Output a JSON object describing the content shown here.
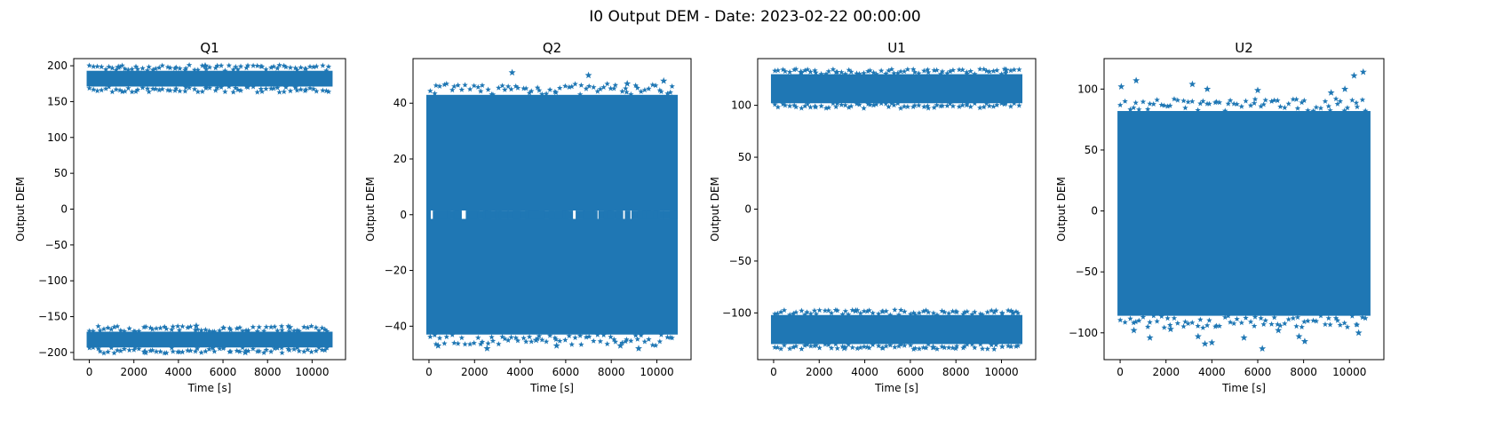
{
  "figure": {
    "title": "I0 Output DEM - Date: 2023-02-22 00:00:00"
  },
  "chart_data": [
    {
      "type": "scatter",
      "title": "Q1",
      "xlabel": "Time [s]",
      "ylabel": "Output DEM",
      "xlim": [
        -700,
        11500
      ],
      "ylim": [
        -210,
        210
      ],
      "xticks": [
        0,
        2000,
        4000,
        6000,
        8000,
        10000
      ],
      "yticks": [
        -200,
        -150,
        -100,
        -50,
        0,
        50,
        100,
        150,
        200
      ],
      "marker": "star",
      "color": "#1f77b4",
      "x_range": [
        0,
        10800
      ],
      "bands": [
        {
          "center": 182,
          "half_width": 11,
          "outlier_spread": 8
        },
        {
          "center": -182,
          "half_width": 11,
          "outlier_spread": 8
        }
      ],
      "outliers": [
        [
          1300,
          198
        ],
        [
          4800,
          -163
        ],
        [
          9000,
          -165
        ],
        [
          5200,
          200
        ],
        [
          7000,
          -200
        ],
        [
          2500,
          -199
        ]
      ]
    },
    {
      "type": "scatter",
      "title": "Q2",
      "xlabel": "Time [s]",
      "ylabel": "Output DEM",
      "xlim": [
        -700,
        11500
      ],
      "ylim": [
        -52,
        56
      ],
      "xticks": [
        0,
        2000,
        4000,
        6000,
        8000,
        10000
      ],
      "yticks": [
        -40,
        -20,
        0,
        20,
        40
      ],
      "marker": "star",
      "color": "#1f77b4",
      "x_range": [
        0,
        10800
      ],
      "bands": [
        {
          "center": 0,
          "half_width": 43,
          "outlier_spread": 4
        }
      ],
      "gap": {
        "center": 0,
        "half_width": 1.5
      },
      "outliers": [
        [
          3650,
          51
        ],
        [
          7000,
          50
        ],
        [
          10300,
          48
        ],
        [
          8700,
          47
        ],
        [
          2550,
          -48
        ],
        [
          400,
          -47
        ],
        [
          5600,
          -47
        ],
        [
          8400,
          -47
        ],
        [
          9200,
          -48
        ],
        [
          4700,
          -45
        ]
      ]
    },
    {
      "type": "scatter",
      "title": "U1",
      "xlabel": "Time [s]",
      "ylabel": "Output DEM",
      "xlim": [
        -700,
        11500
      ],
      "ylim": [
        -145,
        145
      ],
      "xticks": [
        0,
        2000,
        4000,
        6000,
        8000,
        10000
      ],
      "yticks": [
        -100,
        -50,
        0,
        50,
        100
      ],
      "marker": "star",
      "color": "#1f77b4",
      "x_range": [
        0,
        10800
      ],
      "bands": [
        {
          "center": 116,
          "half_width": 14,
          "outlier_spread": 5
        },
        {
          "center": -116,
          "half_width": 14,
          "outlier_spread": 5
        }
      ],
      "outliers": [
        [
          1200,
          132
        ],
        [
          10200,
          134
        ],
        [
          3600,
          -98
        ],
        [
          10500,
          -100
        ],
        [
          3100,
          -134
        ],
        [
          7000,
          -133
        ]
      ]
    },
    {
      "type": "scatter",
      "title": "U2",
      "xlabel": "Time [s]",
      "ylabel": "Output DEM",
      "xlim": [
        -700,
        11500
      ],
      "ylim": [
        -122,
        125
      ],
      "xticks": [
        0,
        2000,
        4000,
        6000,
        8000,
        10000
      ],
      "yticks": [
        -100,
        -50,
        0,
        50,
        100
      ],
      "marker": "star",
      "color": "#1f77b4",
      "x_range": [
        0,
        10800
      ],
      "bands": [
        {
          "center": -2,
          "half_width": 84,
          "outlier_spread": 10
        }
      ],
      "outliers": [
        [
          10600,
          114
        ],
        [
          10200,
          111
        ],
        [
          700,
          107
        ],
        [
          50,
          102
        ],
        [
          3150,
          104
        ],
        [
          3800,
          100
        ],
        [
          6000,
          99
        ],
        [
          9800,
          100
        ],
        [
          9200,
          97
        ],
        [
          1300,
          -104
        ],
        [
          3400,
          -103
        ],
        [
          3700,
          -109
        ],
        [
          4000,
          -108
        ],
        [
          5400,
          -104
        ],
        [
          6200,
          -113
        ],
        [
          7800,
          -103
        ],
        [
          8050,
          -107
        ],
        [
          10400,
          -100
        ],
        [
          600,
          -98
        ],
        [
          6900,
          -98
        ],
        [
          2200,
          -97
        ]
      ]
    }
  ]
}
